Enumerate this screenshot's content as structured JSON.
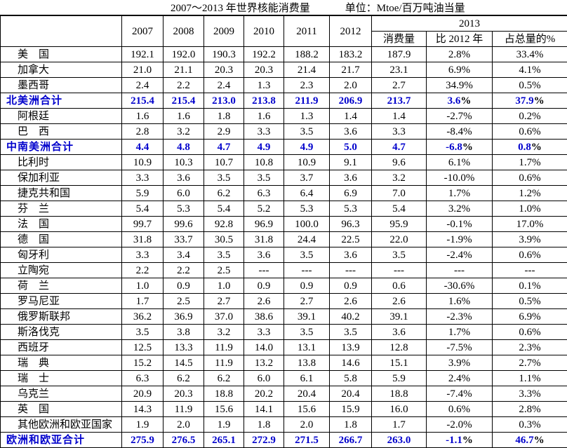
{
  "page": {
    "title": "2007～2013 年世界核能消费量",
    "unit_label": "单位：Mtoe/百万吨油当量"
  },
  "colors": {
    "accent_blue": "#0000cc",
    "text": "#000000",
    "grid": "#000000"
  },
  "table": {
    "corner_label": "",
    "years": [
      "2007",
      "2008",
      "2009",
      "2010",
      "2011",
      "2012"
    ],
    "group_2013": {
      "label": "2013",
      "sub_columns": [
        "消费量",
        "比 2012 年",
        "占总量的%"
      ]
    },
    "rows": [
      {
        "label": "美　国",
        "type": "country",
        "values": [
          "192.1",
          "192.0",
          "190.3",
          "192.2",
          "188.2",
          "183.2",
          "187.9",
          "2.8%",
          "33.4%"
        ]
      },
      {
        "label": "加拿大",
        "type": "country",
        "values": [
          "21.0",
          "21.1",
          "20.3",
          "20.3",
          "21.4",
          "21.7",
          "23.1",
          "6.9%",
          "4.1%"
        ]
      },
      {
        "label": "墨西哥",
        "type": "country",
        "values": [
          "2.4",
          "2.2",
          "2.4",
          "1.3",
          "2.3",
          "2.0",
          "2.7",
          "34.9%",
          "0.5%"
        ]
      },
      {
        "label": "北美洲合计",
        "type": "total",
        "values": [
          "215.4",
          "215.4",
          "213.0",
          "213.8",
          "211.9",
          "206.9",
          "213.7",
          "3.6%",
          "37.9%"
        ]
      },
      {
        "label": "阿根廷",
        "type": "country",
        "values": [
          "1.6",
          "1.6",
          "1.8",
          "1.6",
          "1.3",
          "1.4",
          "1.4",
          "-2.7%",
          "0.2%"
        ]
      },
      {
        "label": "巴　西",
        "type": "country",
        "values": [
          "2.8",
          "3.2",
          "2.9",
          "3.3",
          "3.5",
          "3.6",
          "3.3",
          "-8.4%",
          "0.6%"
        ]
      },
      {
        "label": "中南美洲合计",
        "type": "total",
        "values": [
          "4.4",
          "4.8",
          "4.7",
          "4.9",
          "4.9",
          "5.0",
          "4.7",
          "-6.8%",
          "0.8%"
        ]
      },
      {
        "label": "比利时",
        "type": "country",
        "values": [
          "10.9",
          "10.3",
          "10.7",
          "10.8",
          "10.9",
          "9.1",
          "9.6",
          "6.1%",
          "1.7%"
        ]
      },
      {
        "label": "保加利亚",
        "type": "country",
        "values": [
          "3.3",
          "3.6",
          "3.5",
          "3.5",
          "3.7",
          "3.6",
          "3.2",
          "-10.0%",
          "0.6%"
        ]
      },
      {
        "label": "捷克共和国",
        "type": "country",
        "values": [
          "5.9",
          "6.0",
          "6.2",
          "6.3",
          "6.4",
          "6.9",
          "7.0",
          "1.7%",
          "1.2%"
        ]
      },
      {
        "label": "芬　兰",
        "type": "country",
        "values": [
          "5.4",
          "5.3",
          "5.4",
          "5.2",
          "5.3",
          "5.3",
          "5.4",
          "3.2%",
          "1.0%"
        ]
      },
      {
        "label": "法　国",
        "type": "country",
        "values": [
          "99.7",
          "99.6",
          "92.8",
          "96.9",
          "100.0",
          "96.3",
          "95.9",
          "-0.1%",
          "17.0%"
        ]
      },
      {
        "label": "德　国",
        "type": "country",
        "values": [
          "31.8",
          "33.7",
          "30.5",
          "31.8",
          "24.4",
          "22.5",
          "22.0",
          "-1.9%",
          "3.9%"
        ]
      },
      {
        "label": "匈牙利",
        "type": "country",
        "values": [
          "3.3",
          "3.4",
          "3.5",
          "3.6",
          "3.5",
          "3.6",
          "3.5",
          "-2.4%",
          "0.6%"
        ]
      },
      {
        "label": "立陶宛",
        "type": "country",
        "values": [
          "2.2",
          "2.2",
          "2.5",
          "---",
          "---",
          "---",
          "---",
          "---",
          "---"
        ]
      },
      {
        "label": "荷　兰",
        "type": "country",
        "values": [
          "1.0",
          "0.9",
          "1.0",
          "0.9",
          "0.9",
          "0.9",
          "0.6",
          "-30.6%",
          "0.1%"
        ]
      },
      {
        "label": "罗马尼亚",
        "type": "country",
        "values": [
          "1.7",
          "2.5",
          "2.7",
          "2.6",
          "2.7",
          "2.6",
          "2.6",
          "1.6%",
          "0.5%"
        ]
      },
      {
        "label": "俄罗斯联邦",
        "type": "country",
        "values": [
          "36.2",
          "36.9",
          "37.0",
          "38.6",
          "39.1",
          "40.2",
          "39.1",
          "-2.3%",
          "6.9%"
        ]
      },
      {
        "label": "斯洛伐克",
        "type": "country",
        "values": [
          "3.5",
          "3.8",
          "3.2",
          "3.3",
          "3.5",
          "3.5",
          "3.6",
          "1.7%",
          "0.6%"
        ]
      },
      {
        "label": "西班牙",
        "type": "country",
        "values": [
          "12.5",
          "13.3",
          "11.9",
          "14.0",
          "13.1",
          "13.9",
          "12.8",
          "-7.5%",
          "2.3%"
        ]
      },
      {
        "label": "瑞　典",
        "type": "country",
        "values": [
          "15.2",
          "14.5",
          "11.9",
          "13.2",
          "13.8",
          "14.6",
          "15.1",
          "3.9%",
          "2.7%"
        ]
      },
      {
        "label": "瑞　士",
        "type": "country",
        "values": [
          "6.3",
          "6.2",
          "6.2",
          "6.0",
          "6.1",
          "5.8",
          "5.9",
          "2.4%",
          "1.1%"
        ]
      },
      {
        "label": "乌克兰",
        "type": "country",
        "values": [
          "20.9",
          "20.3",
          "18.8",
          "20.2",
          "20.4",
          "20.4",
          "18.8",
          "-7.4%",
          "3.3%"
        ]
      },
      {
        "label": "英　国",
        "type": "country",
        "values": [
          "14.3",
          "11.9",
          "15.6",
          "14.1",
          "15.6",
          "15.9",
          "16.0",
          "0.6%",
          "2.8%"
        ]
      },
      {
        "label": "其他欧洲和欧亚国家",
        "type": "country",
        "values": [
          "1.9",
          "2.0",
          "1.9",
          "1.8",
          "2.0",
          "1.8",
          "1.7",
          "-2.0%",
          "0.3%"
        ]
      },
      {
        "label": "欧洲和欧亚合计",
        "type": "total",
        "values": [
          "275.9",
          "276.5",
          "265.1",
          "272.9",
          "271.5",
          "266.7",
          "263.0",
          "-1.1%",
          "46.7%"
        ]
      }
    ]
  }
}
